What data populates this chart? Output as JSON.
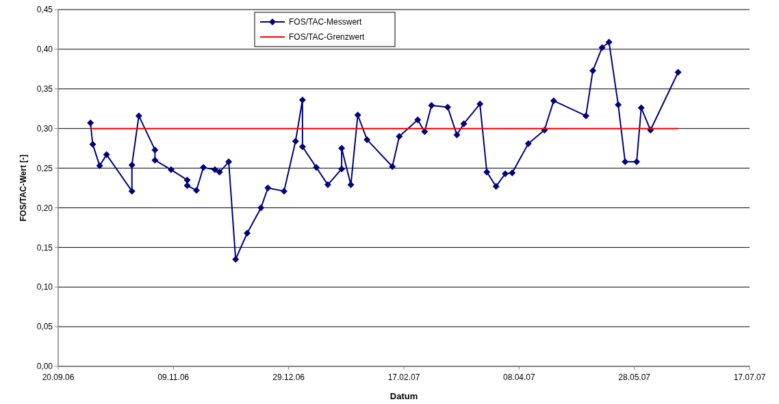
{
  "chart_data": {
    "type": "line",
    "xlabel": "Datum",
    "ylabel": "FOS/TAC-Wert [-]",
    "xlim": [
      "2006-09-20",
      "2007-07-17"
    ],
    "xticks": [
      {
        "value": "2006-09-20",
        "label": "20.09.06"
      },
      {
        "value": "2006-11-09",
        "label": "09.11.06"
      },
      {
        "value": "2006-12-29",
        "label": "29.12.06"
      },
      {
        "value": "2007-02-17",
        "label": "17.02.07"
      },
      {
        "value": "2007-04-08",
        "label": "08.04.07"
      },
      {
        "value": "2007-05-28",
        "label": "28.05.07"
      },
      {
        "value": "2007-07-17",
        "label": "17.07.07"
      }
    ],
    "ylim": [
      0,
      0.45
    ],
    "yticks": [
      {
        "value": 0,
        "label": "0,00"
      },
      {
        "value": 0.05,
        "label": "0,05"
      },
      {
        "value": 0.1,
        "label": "0,10"
      },
      {
        "value": 0.15,
        "label": "0,15"
      },
      {
        "value": 0.2,
        "label": "0,20"
      },
      {
        "value": 0.25,
        "label": "0,25"
      },
      {
        "value": 0.3,
        "label": "0,30"
      },
      {
        "value": 0.35,
        "label": "0,35"
      },
      {
        "value": 0.4,
        "label": "0,40"
      },
      {
        "value": 0.45,
        "label": "0,45"
      }
    ],
    "grid": "y",
    "legend": "top",
    "series": [
      {
        "name": "FOS/TAC-Messwert",
        "color": "#000080",
        "marker": "diamond",
        "x": [
          "2006-10-04",
          "2006-10-05",
          "2006-10-08",
          "2006-10-11",
          "2006-10-22",
          "2006-10-22",
          "2006-10-25",
          "2006-11-01",
          "2006-11-01",
          "2006-11-08",
          "2006-11-15",
          "2006-11-15",
          "2006-11-19",
          "2006-11-22",
          "2006-11-27",
          "2006-11-29",
          "2006-12-03",
          "2006-12-06",
          "2006-12-11",
          "2006-12-17",
          "2006-12-20",
          "2006-12-27",
          "2007-01-01",
          "2007-01-04",
          "2007-01-04",
          "2007-01-10",
          "2007-01-15",
          "2007-01-21",
          "2007-01-21",
          "2007-01-25",
          "2007-01-28",
          "2007-02-01",
          "2007-02-12",
          "2007-02-15",
          "2007-02-23",
          "2007-02-26",
          "2007-03-01",
          "2007-03-08",
          "2007-03-12",
          "2007-03-15",
          "2007-03-22",
          "2007-03-25",
          "2007-03-29",
          "2007-04-02",
          "2007-04-05",
          "2007-04-12",
          "2007-04-19",
          "2007-04-23",
          "2007-05-07",
          "2007-05-10",
          "2007-05-14",
          "2007-05-17",
          "2007-05-21",
          "2007-05-24",
          "2007-05-29",
          "2007-05-31",
          "2007-06-04",
          "2007-06-16"
        ],
        "values": [
          0.307,
          0.28,
          0.253,
          0.267,
          0.221,
          0.254,
          0.316,
          0.273,
          0.26,
          0.248,
          0.235,
          0.228,
          0.222,
          0.251,
          0.248,
          0.245,
          0.258,
          0.135,
          0.168,
          0.2,
          0.225,
          0.221,
          0.284,
          0.336,
          0.277,
          0.251,
          0.229,
          0.249,
          0.275,
          0.229,
          0.317,
          0.286,
          0.252,
          0.29,
          0.311,
          0.296,
          0.329,
          0.327,
          0.292,
          0.306,
          0.331,
          0.245,
          0.227,
          0.243,
          0.244,
          0.281,
          0.298,
          0.335,
          0.316,
          0.373,
          0.402,
          0.409,
          0.33,
          0.258,
          0.258,
          0.326,
          0.298,
          0.371
        ]
      },
      {
        "name": "FOS/TAC-Grenzwert",
        "color": "#ff0000",
        "marker": "none",
        "x": [
          "2006-10-04",
          "2007-06-16"
        ],
        "values": [
          0.3,
          0.3
        ]
      }
    ]
  }
}
